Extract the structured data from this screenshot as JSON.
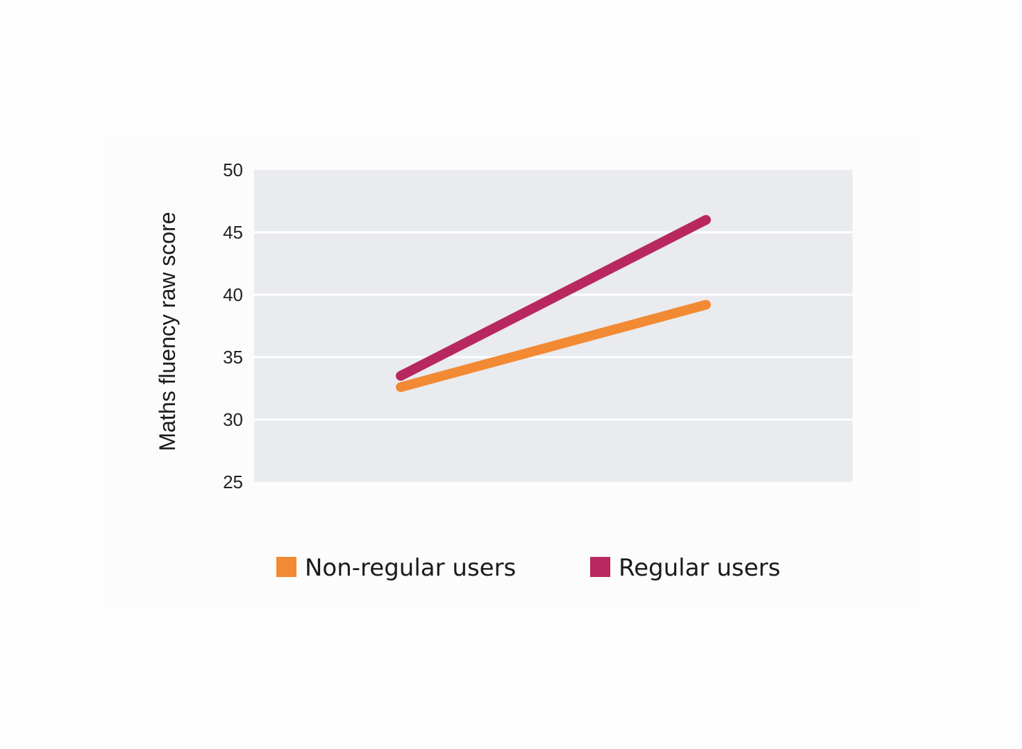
{
  "chart_data": {
    "type": "line",
    "ylabel": "Maths fluency raw score",
    "xlabel": "",
    "ylim": [
      25,
      50
    ],
    "yticks": [
      25,
      30,
      35,
      40,
      45,
      50
    ],
    "grid": true,
    "legend_position": "bottom",
    "background": "#e9ebee",
    "series": [
      {
        "name": "Non-regular users",
        "color": "#f28a33",
        "x": [
          1,
          2
        ],
        "y": [
          32.6,
          39.2
        ]
      },
      {
        "name": "Regular users",
        "color": "#b8285f",
        "x": [
          1,
          2
        ],
        "y": [
          33.5,
          46.0
        ]
      }
    ]
  }
}
